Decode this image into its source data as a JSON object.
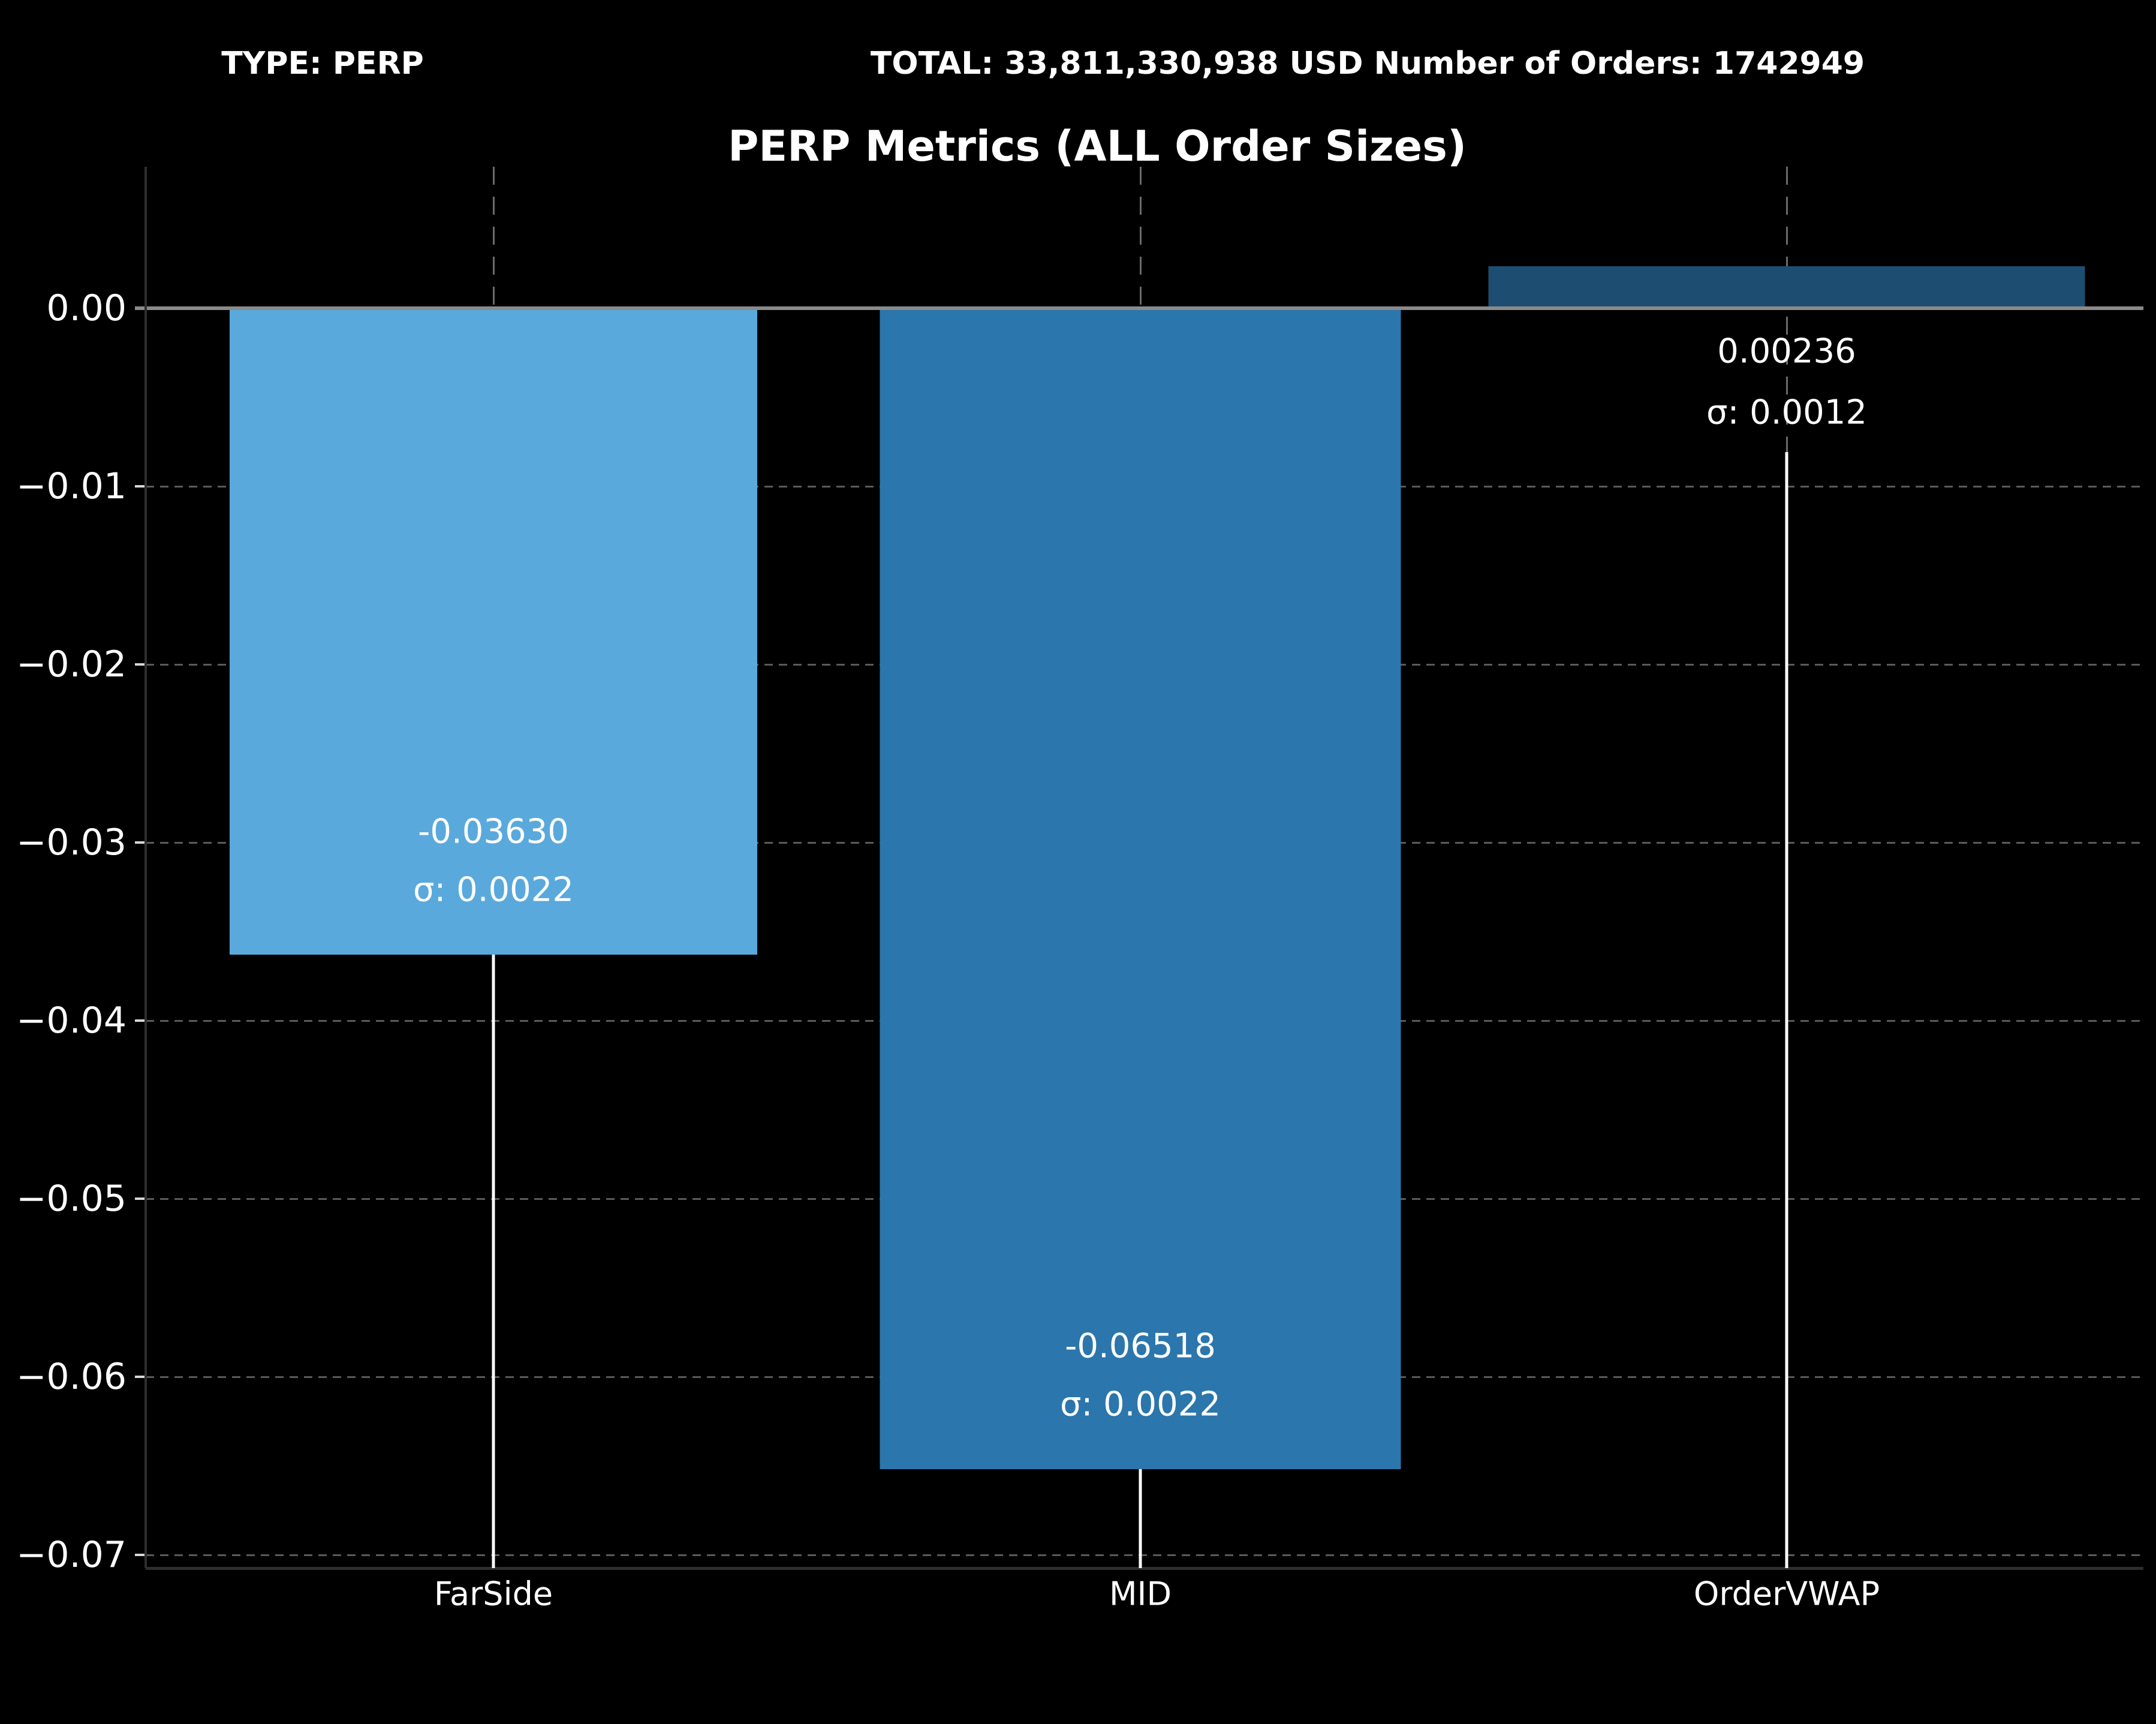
{
  "header": {
    "type_label": "TYPE: PERP",
    "total_label": "TOTAL: 33,811,330,938 USD Number of Orders: 1742949"
  },
  "title": "PERP Metrics (ALL Order Sizes)",
  "chart_data": {
    "type": "bar",
    "title": "PERP Metrics (ALL Order Sizes)",
    "categories": [
      "FarSide",
      "MID",
      "OrderVWAP"
    ],
    "values": [
      -0.0363,
      -0.06518,
      0.00236
    ],
    "sigmas": [
      0.0022,
      0.0022,
      0.0012
    ],
    "bar_value_labels": [
      "-0.03630",
      "-0.06518",
      "0.00236"
    ],
    "bar_sigma_labels": [
      "σ: 0.0022",
      "σ: 0.0022",
      "σ: 0.0012"
    ],
    "bar_colors": [
      "#59a9dd",
      "#2b76ac",
      "#1d4e71"
    ],
    "xlabel": "",
    "ylabel": "",
    "ylim": [
      0.0078,
      -0.0708
    ],
    "y_ticks": [
      0.0,
      -0.01,
      -0.02,
      -0.03,
      -0.04,
      -0.05,
      -0.06,
      -0.07
    ],
    "y_tick_labels": [
      "0.00",
      "−0.01",
      "−0.02",
      "−0.03",
      "−0.04",
      "−0.05",
      "−0.06",
      "−0.07"
    ],
    "grid": true,
    "legend": null
  },
  "colors": {
    "background": "#000000",
    "text": "#ffffff",
    "zero_line": "#8a8a8a",
    "gridline": "#5a5a5a",
    "stem": "#ffffff"
  }
}
